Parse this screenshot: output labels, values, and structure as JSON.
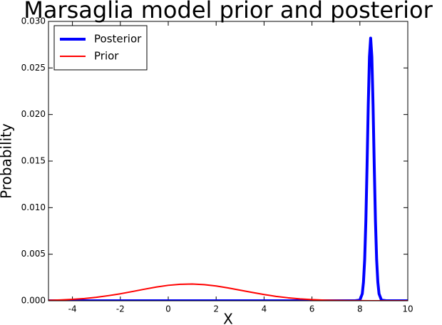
{
  "chart_data": {
    "type": "line",
    "title": "Marsaglia model prior and posterior",
    "x_label": "X",
    "y_label": "Probability",
    "xlim": [
      -5,
      10
    ],
    "xticks": [
      -4,
      -2,
      0,
      2,
      4,
      6,
      8,
      10
    ],
    "ylim": [
      0,
      0.03
    ],
    "yticks": [
      {
        "value": 0,
        "label": "0.000"
      },
      {
        "value": 0.005,
        "label": "0.005"
      },
      {
        "value": 0.01,
        "label": "0.010"
      },
      {
        "value": 0.015,
        "label": "0.015"
      },
      {
        "value": 0.02,
        "label": "0.020"
      },
      {
        "value": 0.025,
        "label": "0.025"
      },
      {
        "value": 0.03,
        "label": "0.030"
      }
    ],
    "legend": "upper left",
    "series": [
      {
        "name": "Posterior",
        "color": "#0000ff",
        "width": 4,
        "x": [
          -5,
          7.8,
          8.0,
          8.1,
          8.15,
          8.2,
          8.25,
          8.3,
          8.35,
          8.4,
          8.45,
          8.5,
          8.55,
          8.6,
          8.65,
          8.7,
          8.75,
          8.8,
          8.9,
          9.1,
          10
        ],
        "values": [
          0,
          0,
          7e-05,
          0.00075,
          0.002,
          0.0044,
          0.0086,
          0.0145,
          0.021,
          0.0262,
          0.0282,
          0.0262,
          0.021,
          0.0145,
          0.0086,
          0.0044,
          0.002,
          0.00075,
          7e-05,
          0,
          0
        ]
      },
      {
        "name": "Prior",
        "color": "#ff0000",
        "width": 2,
        "x": [
          -5,
          -4.5,
          -4,
          -3.5,
          -3,
          -2.5,
          -2,
          -1.5,
          -1,
          -0.5,
          0,
          0.5,
          1,
          1.5,
          2,
          2.5,
          3,
          3.5,
          4,
          4.5,
          5,
          5.5,
          6,
          6.5,
          7,
          7.5,
          8,
          8.5,
          10
        ],
        "values": [
          5e-05,
          9e-05,
          0.00015,
          0.00024,
          0.00037,
          0.00055,
          0.00075,
          0.00099,
          0.00124,
          0.00147,
          0.00166,
          0.00177,
          0.0018,
          0.00173,
          0.00159,
          0.00138,
          0.00114,
          0.0009,
          0.00067,
          0.00047,
          0.00032,
          0.0002,
          0.00012,
          7e-05,
          4e-05,
          2e-05,
          1e-05,
          0,
          0
        ]
      }
    ]
  }
}
